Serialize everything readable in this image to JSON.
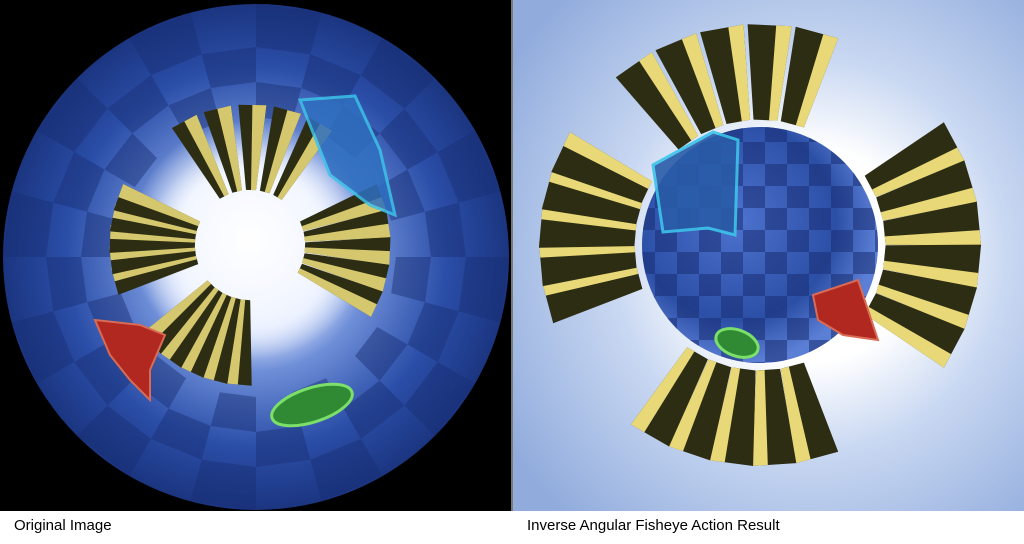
{
  "captions": {
    "left": "Original Image",
    "right": "Inverse Angular Fisheye Action Result"
  },
  "colors": {
    "left_background": "#000000",
    "right_background": "#9fb7e0",
    "sphere_blue": "#2b4ea8",
    "checker_dark": "#1a2f73",
    "pillar_yellow": "#e8d877",
    "pillar_dark": "#2d2d14",
    "cyan_shape": "#2aa6d8",
    "red_shape": "#b0281f",
    "green_shape": "#3aa23a"
  }
}
